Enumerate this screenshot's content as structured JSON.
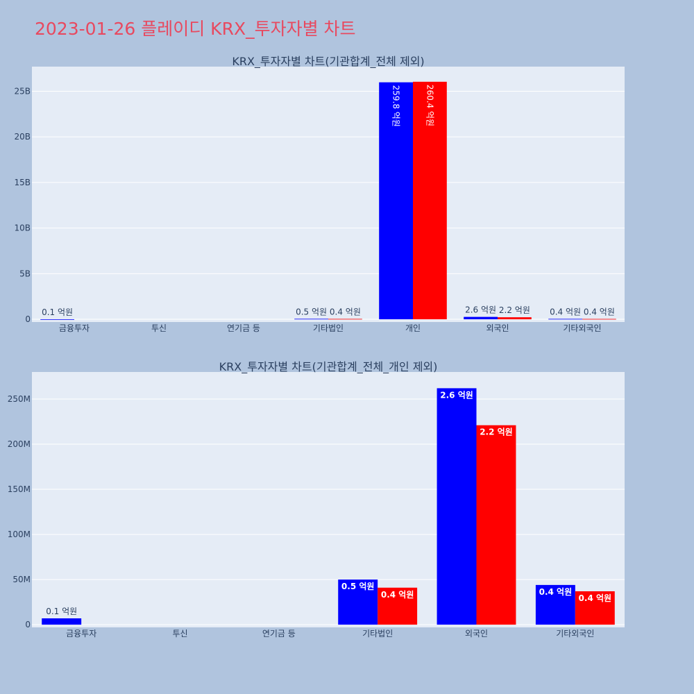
{
  "page": {
    "title": "2023-01-26 플레이디 KRX_투자자별 차트"
  },
  "colors": {
    "buy": "#0000ff",
    "sell": "#ff0000",
    "title": "#e8495f",
    "background": "#b0c4de",
    "plot_background": "#e5ecf6"
  },
  "chart_data": [
    {
      "type": "bar",
      "title": "KRX_투자자별 차트(기관합계_전체 제외)",
      "categories": [
        "금융투자",
        "투신",
        "연기금 등",
        "기타법인",
        "개인",
        "외국인",
        "기타외국인"
      ],
      "series": [
        {
          "color": "#0000ff",
          "values": [
            7000000,
            0,
            0,
            50000000,
            25980000000,
            262000000,
            44000000
          ],
          "labels": [
            "0.1 억원",
            "",
            "",
            "0.5 억원",
            "259.8 억원",
            "2.6 억원",
            "0.4 억원"
          ]
        },
        {
          "color": "#ff0000",
          "values": [
            0,
            0,
            0,
            41000000,
            26040000000,
            221000000,
            37000000
          ],
          "labels": [
            "",
            "",
            "",
            "0.4 억원",
            "260.4 억원",
            "2.2 억원",
            "0.4 억원"
          ]
        }
      ],
      "yticks": [
        0,
        5000000000,
        10000000000,
        15000000000,
        20000000000,
        25000000000
      ],
      "ytick_labels": [
        "0",
        "5B",
        "10B",
        "15B",
        "20B",
        "25B"
      ],
      "ylim": [
        -300000000,
        27700000000
      ],
      "grid": true
    },
    {
      "type": "bar",
      "title": "KRX_투자자별 차트(기관합계_전체_개인 제외)",
      "categories": [
        "금융투자",
        "투신",
        "연기금 등",
        "기타법인",
        "외국인",
        "기타외국인"
      ],
      "series": [
        {
          "color": "#0000ff",
          "values": [
            7000000,
            0,
            0,
            50000000,
            262000000,
            44000000
          ],
          "labels": [
            "0.1 억원",
            "",
            "",
            "0.5 억원",
            "2.6 억원",
            "0.4 억원"
          ]
        },
        {
          "color": "#ff0000",
          "values": [
            0,
            0,
            0,
            41000000,
            221000000,
            37000000
          ],
          "labels": [
            "",
            "",
            "",
            "0.4 억원",
            "2.2 억원",
            "0.4 억원"
          ]
        }
      ],
      "yticks": [
        0,
        50000000,
        100000000,
        150000000,
        200000000,
        250000000
      ],
      "ytick_labels": [
        "0",
        "50M",
        "100M",
        "150M",
        "200M",
        "250M"
      ],
      "ylim": [
        -3000000,
        280000000
      ],
      "grid": true
    }
  ]
}
